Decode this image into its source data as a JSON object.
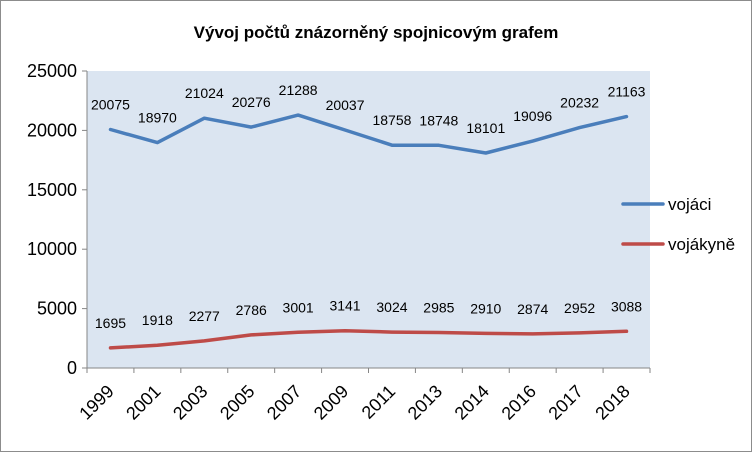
{
  "chart_data": {
    "type": "line",
    "title": "Vývoj počtů znázorněný spojnicovým grafem",
    "categories": [
      "1999",
      "2001",
      "2003",
      "2005",
      "2007",
      "2009",
      "2011",
      "2013",
      "2014",
      "2016",
      "2017",
      "2018"
    ],
    "series": [
      {
        "name": "vojáci",
        "color": "#4a7ebb",
        "values": [
          20075,
          18970,
          21024,
          20276,
          21288,
          20037,
          18758,
          18748,
          18101,
          19096,
          20232,
          21163
        ]
      },
      {
        "name": "vojákyně",
        "color": "#be4b48",
        "values": [
          1695,
          1918,
          2277,
          2786,
          3001,
          3141,
          3024,
          2985,
          2910,
          2874,
          2952,
          3088
        ]
      }
    ],
    "ylim": [
      0,
      25000
    ],
    "yticks": [
      0,
      5000,
      10000,
      15000,
      20000,
      25000
    ],
    "grid": false,
    "legend_position": "right",
    "data_labels": true,
    "plot_background": "#dbe5f1"
  }
}
